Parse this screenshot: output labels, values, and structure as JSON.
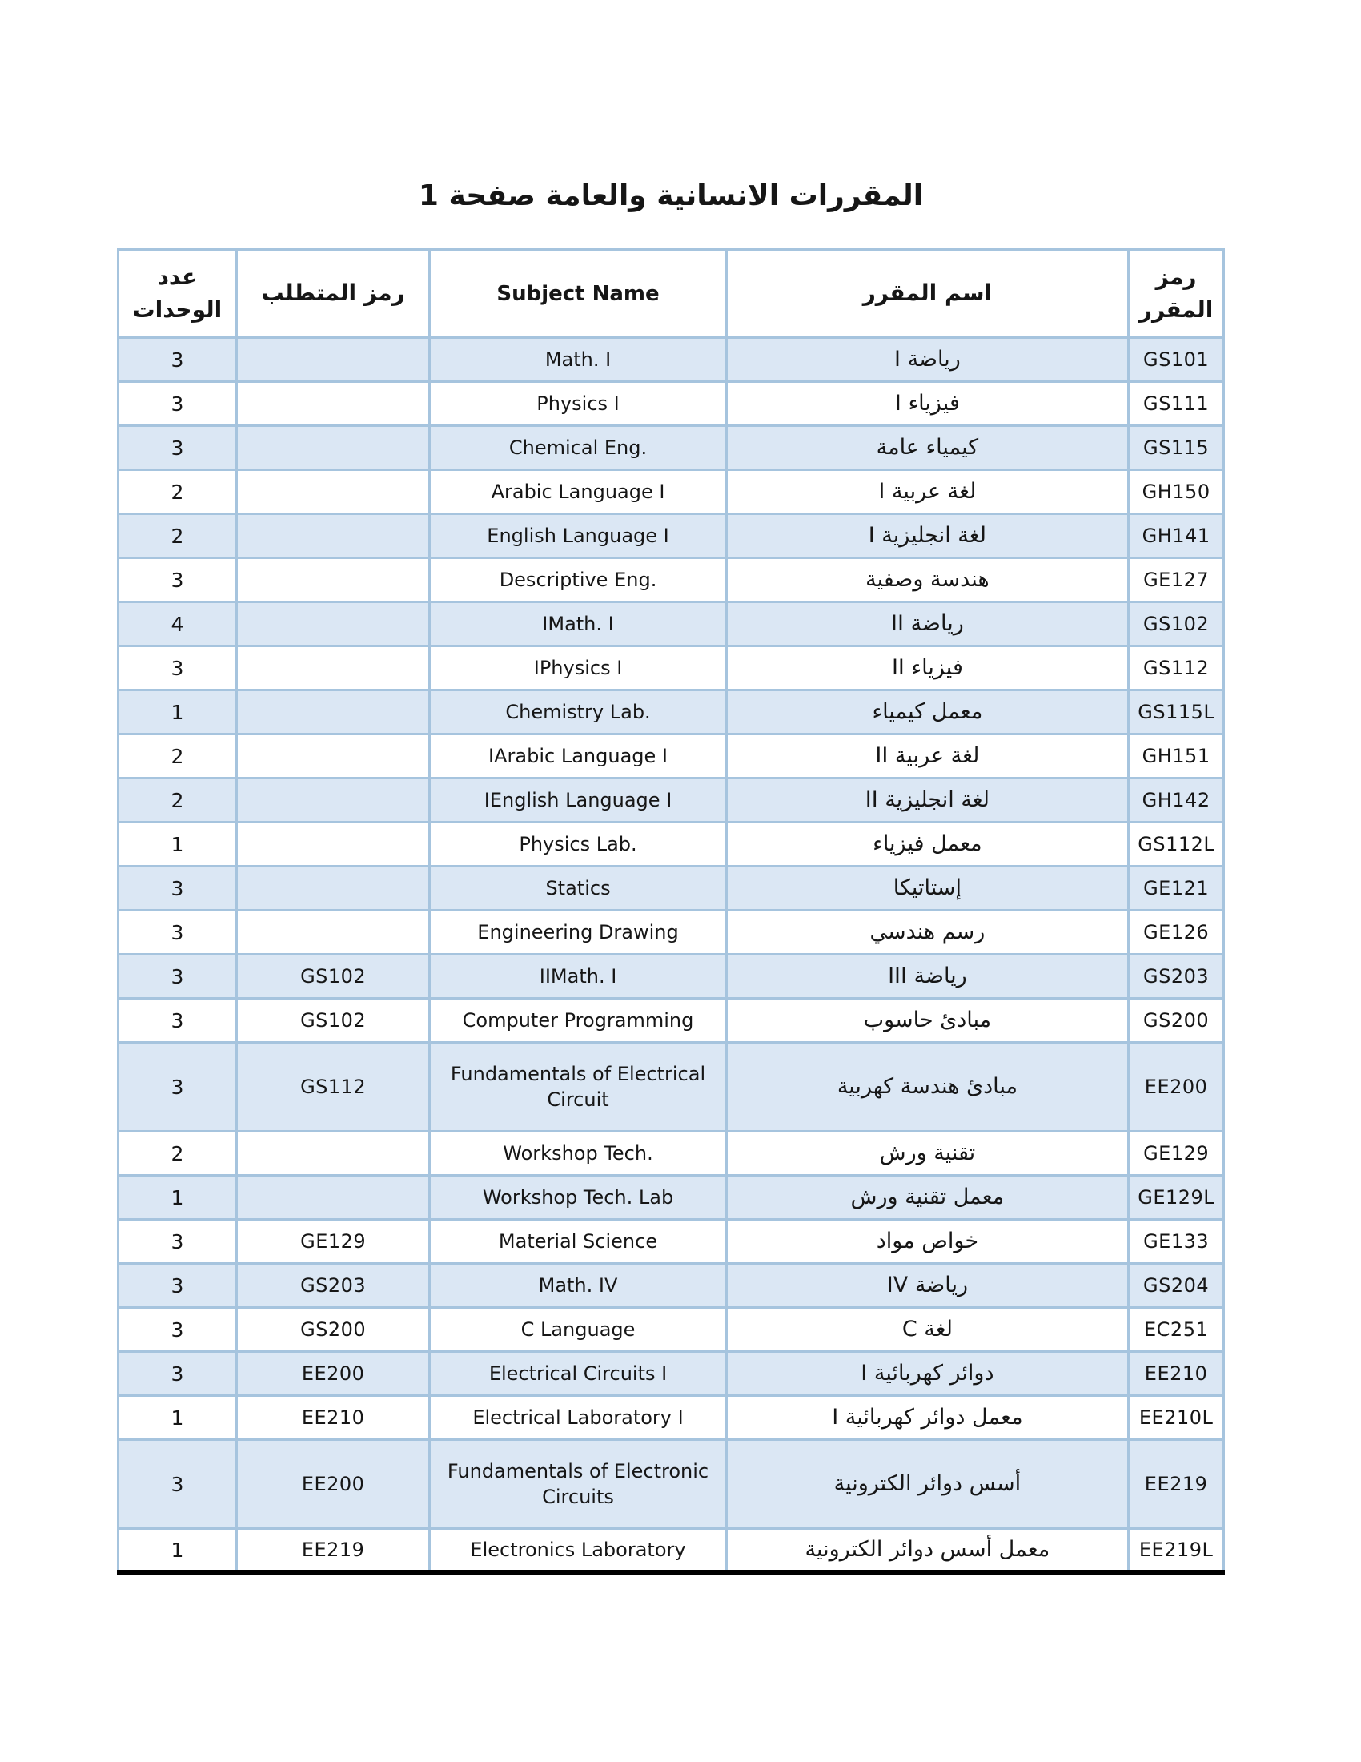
{
  "page_title": "المقررات الانسانية والعامة صفحة 1",
  "colors": {
    "row_shade": "#dbe7f4",
    "table_border": "#a6c4de",
    "bottom_rule": "#000000"
  },
  "table": {
    "headers": {
      "course_code": "رمز المقرر",
      "course_name": "اسم المقرر",
      "subject_name": "Subject Name",
      "prerequisite": "رمز المتطلب",
      "units": "عدد الوحدات"
    },
    "rows": [
      {
        "code": "GS101",
        "name_ar": "رياضة I",
        "subject_en": "Math. I",
        "prereq": "",
        "units": "3"
      },
      {
        "code": "GS111",
        "name_ar": "فيزياء I",
        "subject_en": "Physics I",
        "prereq": "",
        "units": "3"
      },
      {
        "code": "GS115",
        "name_ar": "كيمياء عامة",
        "subject_en": "Chemical Eng.",
        "prereq": "",
        "units": "3"
      },
      {
        "code": "GH150",
        "name_ar": "لغة عربية I",
        "subject_en": "Arabic Language I",
        "prereq": "",
        "units": "2"
      },
      {
        "code": "GH141",
        "name_ar": "لغة انجليزية I",
        "subject_en": "English Language I",
        "prereq": "",
        "units": "2"
      },
      {
        "code": "GE127",
        "name_ar": "هندسة وصفية",
        "subject_en": "Descriptive Eng.",
        "prereq": "",
        "units": "3"
      },
      {
        "code": "GS102",
        "name_ar": "رياضة II",
        "subject_en": "IMath. I",
        "prereq": "",
        "units": "4"
      },
      {
        "code": "GS112",
        "name_ar": "فيزياء II",
        "subject_en": "IPhysics I",
        "prereq": "",
        "units": "3"
      },
      {
        "code": "GS115L",
        "name_ar": "معمل كيمياء",
        "subject_en": "Chemistry Lab.",
        "prereq": "",
        "units": "1"
      },
      {
        "code": "GH151",
        "name_ar": "لغة عربية II",
        "subject_en": "IArabic Language I",
        "prereq": "",
        "units": "2"
      },
      {
        "code": "GH142",
        "name_ar": "لغة انجليزية II",
        "subject_en": "IEnglish Language I",
        "prereq": "",
        "units": "2"
      },
      {
        "code": "GS112L",
        "name_ar": "معمل فيزياء",
        "subject_en": "Physics Lab.",
        "prereq": "",
        "units": "1"
      },
      {
        "code": "GE121",
        "name_ar": "إستاتيكا",
        "subject_en": "Statics",
        "prereq": "",
        "units": "3"
      },
      {
        "code": "GE126",
        "name_ar": "رسم هندسي",
        "subject_en": "Engineering Drawing",
        "prereq": "",
        "units": "3"
      },
      {
        "code": "GS203",
        "name_ar": "رياضة III",
        "subject_en": "IIMath. I",
        "prereq": "GS102",
        "units": "3"
      },
      {
        "code": "GS200",
        "name_ar": "مبادئ حاسوب",
        "subject_en": "Computer Programming",
        "prereq": "GS102",
        "units": "3"
      },
      {
        "code": "EE200",
        "name_ar": "مبادئ هندسة كهربية",
        "subject_en": "Fundamentals of Electrical Circuit",
        "prereq": "GS112",
        "units": "3"
      },
      {
        "code": "GE129",
        "name_ar": "تقنية ورش",
        "subject_en": "Workshop Tech.",
        "prereq": "",
        "units": "2"
      },
      {
        "code": "GE129L",
        "name_ar": "معمل تقنية ورش",
        "subject_en": "Workshop Tech. Lab",
        "prereq": "",
        "units": "1"
      },
      {
        "code": "GE133",
        "name_ar": "خواص مواد",
        "subject_en": "Material Science",
        "prereq": "GE129",
        "units": "3"
      },
      {
        "code": "GS204",
        "name_ar": "رياضة IV",
        "subject_en": "Math. IV",
        "prereq": "GS203",
        "units": "3"
      },
      {
        "code": "EC251",
        "name_ar": "لغة C",
        "subject_en": "C Language",
        "prereq": "GS200",
        "units": "3"
      },
      {
        "code": "EE210",
        "name_ar": "دوائر كهربائية I",
        "subject_en": "Electrical Circuits I",
        "prereq": "EE200",
        "units": "3"
      },
      {
        "code": "EE210L",
        "name_ar": "معمل دوائر كهربائية I",
        "subject_en": "Electrical Laboratory I",
        "prereq": "EE210",
        "units": "1"
      },
      {
        "code": "EE219",
        "name_ar": "أسس دوائر الكترونية",
        "subject_en": "Fundamentals of Electronic Circuits",
        "prereq": "EE200",
        "units": "3"
      },
      {
        "code": "EE219L",
        "name_ar": "معمل أسس دوائر الكترونية",
        "subject_en": "Electronics Laboratory",
        "prereq": "EE219",
        "units": "1"
      }
    ]
  }
}
